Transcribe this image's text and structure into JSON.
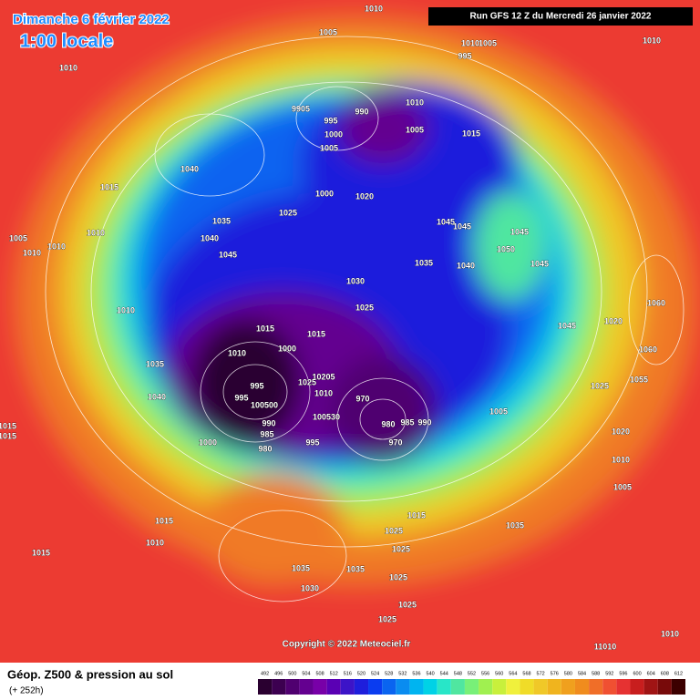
{
  "header": {
    "title": "Dimanche 6 février 2022",
    "time": "1:00 locale"
  },
  "run": "Run GFS 12 Z du Mercredi 26 janvier 2022",
  "copyright": "Copyright © 2022 Meteociel.fr",
  "footer": {
    "title": "Géop. Z500 & pression au sol",
    "subtitle": "(+ 252h)"
  },
  "legend": {
    "levels": [
      492,
      496,
      500,
      504,
      508,
      512,
      516,
      520,
      524,
      528,
      532,
      536,
      540,
      544,
      548,
      552,
      556,
      560,
      564,
      568,
      572,
      576,
      580,
      584,
      588,
      592,
      596,
      600,
      604,
      608,
      612
    ],
    "colors": [
      "#2a0030",
      "#3c0050",
      "#500070",
      "#640090",
      "#7800a8",
      "#5a00b4",
      "#3c14c8",
      "#1e1edc",
      "#0a3cf0",
      "#0a64f0",
      "#0a8cf0",
      "#00b4f0",
      "#00d2e6",
      "#28e6c8",
      "#50e6a0",
      "#78f078",
      "#a0f050",
      "#c8f03c",
      "#f0f03c",
      "#f0dc28",
      "#f0c828",
      "#f0b41e",
      "#f0a01e",
      "#f08c1e",
      "#f06e28",
      "#f05032",
      "#e63232",
      "#c81e1e",
      "#a01414",
      "#780a0a",
      "#3c0000"
    ]
  },
  "isobar_labels": [
    "1010",
    "1005",
    "1005",
    "1010",
    "995",
    "1010",
    "1010",
    "9905",
    "995",
    "990",
    "1000",
    "1005",
    "1010",
    "1005",
    "1015",
    "1040",
    "1015",
    "1000",
    "1020",
    "1025",
    "1035",
    "1045",
    "1045",
    "1005",
    "1010",
    "1010",
    "1010",
    "1040",
    "1045",
    "1045",
    "1050",
    "1035",
    "1040",
    "1045",
    "1030",
    "1010",
    "1025",
    "1060",
    "1020",
    "1015",
    "1015",
    "1045",
    "1010",
    "1000",
    "1060",
    "1035",
    "10205",
    "1025",
    "1010",
    "1055",
    "1025",
    "1040",
    "995",
    "995",
    "100500",
    "970",
    "100530",
    "980",
    "985",
    "990",
    "1005",
    "990",
    "985",
    "1000",
    "995",
    "980",
    "970",
    "1020",
    "1010",
    "1005",
    "1015",
    "1035",
    "1025",
    "1015",
    "1010",
    "1015",
    "1025",
    "1035",
    "1035",
    "1025",
    "1030",
    "1025",
    "1025",
    "1010",
    "11010",
    "1015",
    "1015"
  ]
}
